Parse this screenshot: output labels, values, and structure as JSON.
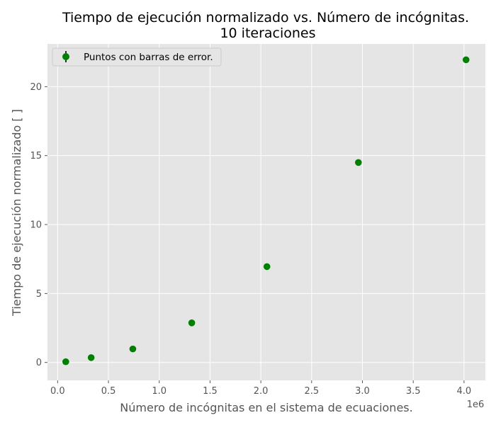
{
  "chart_data": {
    "type": "scatter",
    "title": "Tiempo de ejecución normalizado vs. Número de incógnitas.",
    "subtitle": "10 iteraciones",
    "xlabel": "Número de incógnitas en el sistema de ecuaciones.",
    "ylabel": "Tiempo de ejecución normalizado [ ]",
    "x_offset_label": "1e6",
    "xlim": [
      -0.1,
      4.21
    ],
    "ylim": [
      -1.3,
      23.1
    ],
    "x_ticks": [
      0.0,
      0.5,
      1.0,
      1.5,
      2.0,
      2.5,
      3.0,
      3.5,
      4.0
    ],
    "x_tick_labels": [
      "0.0",
      "0.5",
      "1.0",
      "1.5",
      "2.0",
      "2.5",
      "3.0",
      "3.5",
      "4.0"
    ],
    "y_ticks": [
      0,
      5,
      10,
      15,
      20
    ],
    "y_tick_labels": [
      "0",
      "5",
      "10",
      "15",
      "20"
    ],
    "grid": true,
    "legend_position": "top-left",
    "series": [
      {
        "name": "Puntos con barras de error.",
        "color": "#008000",
        "x": [
          0.08,
          0.33,
          0.74,
          1.32,
          2.06,
          2.96,
          4.02
        ],
        "y": [
          0.05,
          0.35,
          0.98,
          2.87,
          6.95,
          14.5,
          21.95
        ]
      }
    ],
    "colors": {
      "plot_background": "#e5e5e5",
      "grid": "#ffffff",
      "text": "#555555",
      "marker": "#008000"
    }
  }
}
